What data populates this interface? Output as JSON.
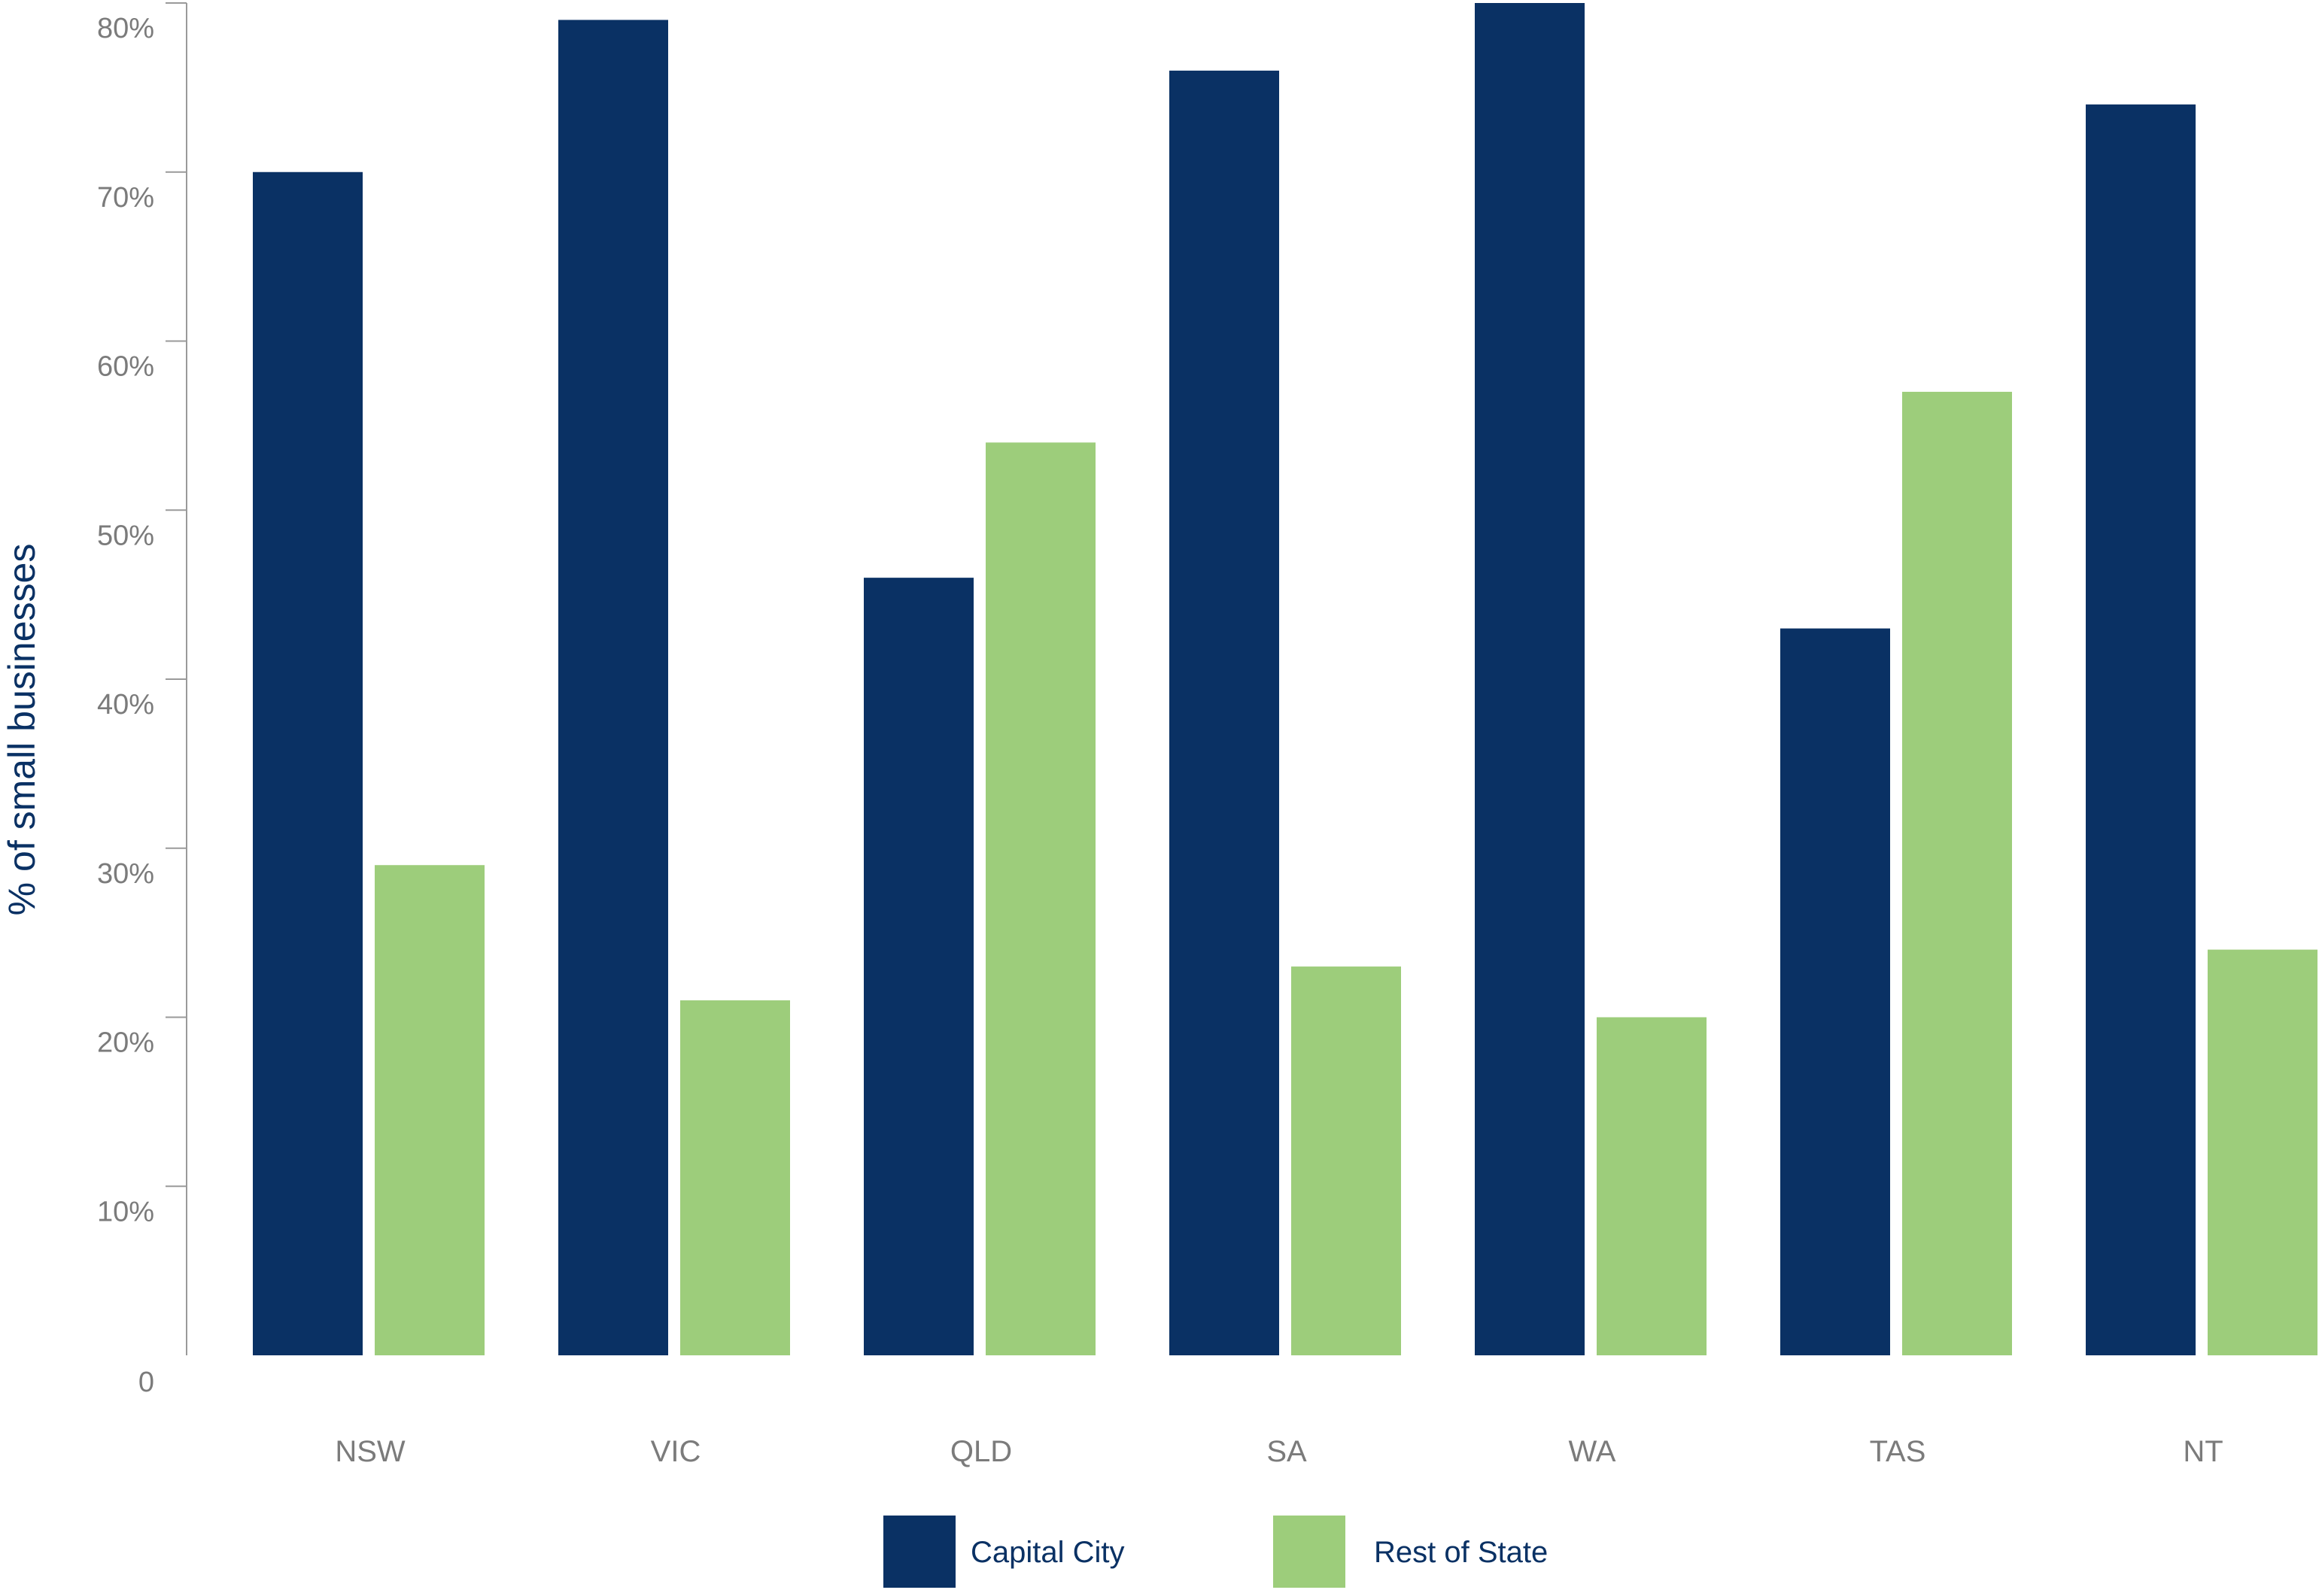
{
  "chart_data": {
    "type": "bar",
    "title": "",
    "xlabel": "",
    "ylabel": "% of small businesses",
    "ylim": [
      0,
      80
    ],
    "yticks": [
      {
        "value": 0,
        "label": "0"
      },
      {
        "value": 10,
        "label": "10%"
      },
      {
        "value": 20,
        "label": "20%"
      },
      {
        "value": 30,
        "label": "30%"
      },
      {
        "value": 40,
        "label": "40%"
      },
      {
        "value": 50,
        "label": "50%"
      },
      {
        "value": 60,
        "label": "60%"
      },
      {
        "value": 70,
        "label": "70%"
      },
      {
        "value": 80,
        "label": "80%"
      }
    ],
    "categories": [
      "NSW",
      "VIC",
      "QLD",
      "SA",
      "WA",
      "TAS",
      "NT"
    ],
    "series": [
      {
        "name": "Capital City",
        "color": "#0a3164",
        "values": [
          70,
          79,
          46,
          76,
          80,
          43,
          74
        ]
      },
      {
        "name": "Rest of State",
        "color": "#9dcd7b",
        "values": [
          29,
          21,
          54,
          23,
          20,
          57,
          24
        ]
      }
    ],
    "grid": false,
    "legend_position": "bottom-center",
    "colors": {
      "axis": "#9a9a9a",
      "tick_text": "#7b7b7b",
      "label_text": "#0a3164"
    }
  }
}
